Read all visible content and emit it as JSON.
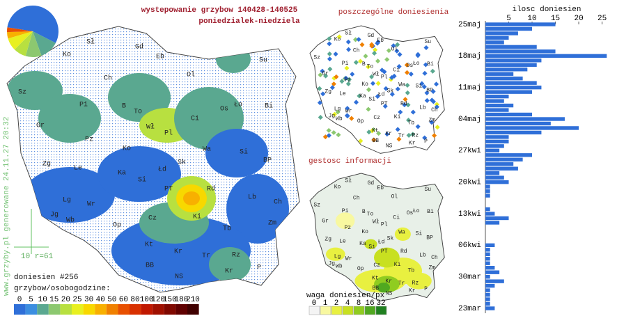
{
  "header": {
    "title": "wystepowanie grzybow 140428-140525",
    "subtitle": "poniedzialek-niedziela"
  },
  "pie": {
    "values": [
      55,
      12,
      10,
      8,
      8,
      4,
      3
    ],
    "colors": [
      "#2f6fd8",
      "#5aa890",
      "#8cc870",
      "#b8e040",
      "#e8f020",
      "#f8b000",
      "#e85000"
    ]
  },
  "map_labels": [
    "Sł",
    "Ko",
    "Gd",
    "Eb",
    "Su",
    "Ol",
    "Ch",
    "Sz",
    "Pi",
    "B",
    "To",
    "Os",
    "Ło",
    "Bi",
    "Gr",
    "Wł",
    "Pl",
    "Ci",
    "Pz",
    "Ko",
    "Wa",
    "Si",
    "Zg",
    "Le",
    "Ka",
    "Łd",
    "Sk",
    "BP",
    "Si",
    "PT",
    "Rd",
    "Lg",
    "Wr",
    "Lb",
    "Ch",
    "Jg",
    "Wb",
    "Op",
    "Cz",
    "Ki",
    "Zm",
    "Tb",
    "Kt",
    "Kr",
    "Tr",
    "Rz",
    "BB",
    "NS",
    "Kr",
    "P"
  ],
  "main_map": {
    "reports": "doniesien #256",
    "legend_title": "grzybow/osobogodzine:",
    "legend_ticks": [
      0,
      5,
      10,
      15,
      20,
      25,
      30,
      40,
      50,
      60,
      80,
      100,
      120,
      150,
      180,
      210
    ],
    "legend_colors": [
      "#2f6fd8",
      "#3c8ee0",
      "#5aa890",
      "#8cc870",
      "#b8e040",
      "#e8f020",
      "#f8d800",
      "#f8b000",
      "#f08000",
      "#e85000",
      "#d83000",
      "#c01800",
      "#a01000",
      "#800800",
      "#600000",
      "#400000"
    ],
    "scale_label": "10 r=61",
    "footer": "www.grzyby.pl generowane 24.11.27 20:32"
  },
  "dots_map": {
    "title": "poszczególne doniesienia"
  },
  "density_map": {
    "title": "gestosc informacji",
    "legend_title": "waga doniesien/px",
    "legend_ticks": [
      0,
      1,
      2,
      4,
      8,
      16,
      32
    ],
    "legend_colors": [
      "#f4f4f4",
      "#f8f8a0",
      "#e8f040",
      "#c8e020",
      "#90cc20",
      "#50a820",
      "#208020"
    ]
  },
  "chart_data": {
    "type": "bar",
    "orientation": "horizontal",
    "xlabel": "ilosc doniesien",
    "color": "#2f6fd8",
    "xlim": [
      0,
      27
    ],
    "xticks": [
      5,
      10,
      15,
      20,
      25
    ],
    "categories": [
      "25maj",
      null,
      null,
      null,
      null,
      null,
      null,
      "18maj",
      null,
      null,
      null,
      null,
      null,
      null,
      "11maj",
      null,
      null,
      null,
      null,
      null,
      null,
      "04maj",
      null,
      null,
      null,
      null,
      null,
      null,
      "27kwi",
      null,
      null,
      null,
      null,
      null,
      null,
      "20kwi",
      null,
      null,
      null,
      null,
      null,
      null,
      "13kwi",
      null,
      null,
      null,
      null,
      null,
      null,
      "06kwi",
      null,
      null,
      null,
      null,
      null,
      null,
      "30mar",
      null,
      null,
      null,
      null,
      null,
      null,
      "23mar"
    ],
    "values": [
      15,
      10,
      7,
      5,
      4,
      11,
      15,
      26,
      12,
      11,
      9,
      6,
      8,
      11,
      12,
      10,
      5,
      4,
      6,
      5,
      10,
      17,
      14,
      20,
      12,
      5,
      5,
      4,
      3,
      10,
      8,
      6,
      7,
      3,
      4,
      5,
      1,
      1,
      1,
      0,
      0,
      1,
      2,
      5,
      3,
      0,
      0,
      0,
      0,
      2,
      1,
      1,
      1,
      1,
      2,
      3,
      1,
      4,
      2,
      1,
      1,
      1,
      1,
      2
    ]
  }
}
